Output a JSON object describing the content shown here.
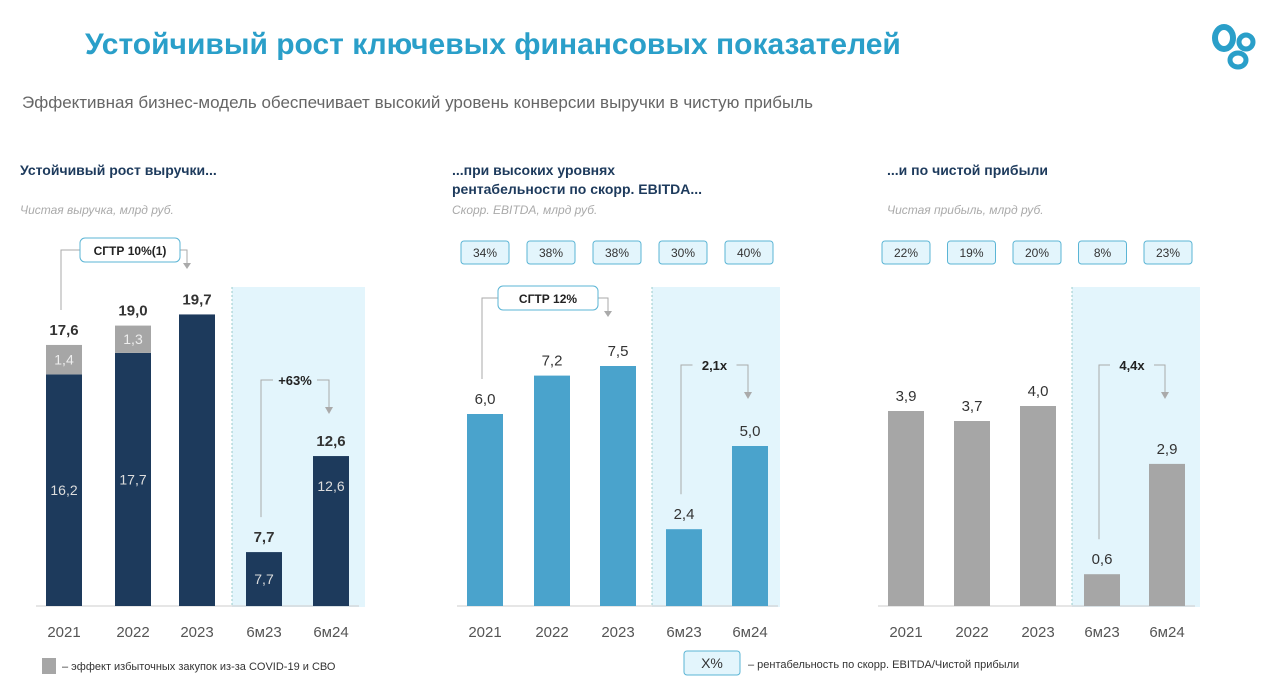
{
  "title": "Устойчивый рост ключевых финансовых показателей",
  "subtitle": "Эффективная бизнес-модель обеспечивает высокий уровень конверсии выручки в чистую прибыль",
  "colors": {
    "revenue": "#1d3a5c",
    "covid": "#a6a6a6",
    "ebitda": "#4aa3cc",
    "net": "#a6a6a6",
    "highlight": "#e3f5fc",
    "title": "#2a9fc9"
  },
  "legend": {
    "covid": "– эффект избыточных закупок из-за COVID-19 и СВО",
    "box": "X%",
    "margin": "– рентабельность по скорр. EBITDA/Чистой прибыли"
  },
  "chart_data": [
    {
      "type": "bar",
      "heading": "Устойчивый рост выручки...",
      "ylabel": "Чистая выручка, млрд руб.",
      "categories": [
        "2021",
        "2022",
        "2023",
        "6м23",
        "6м24"
      ],
      "series": [
        {
          "values": [
            16.2,
            17.7,
            19.7,
            7.7,
            12.6
          ]
        },
        {
          "values": [
            1.4,
            1.3,
            0,
            0,
            0
          ]
        }
      ],
      "totals": [
        "17,6",
        "19,0",
        "19,7",
        "7,7",
        "12,6"
      ],
      "inner_labels": [
        "16,2",
        "17,7",
        "",
        "7,7",
        "12,6"
      ],
      "top_labels": [
        "1,4",
        "1,3",
        "",
        "",
        ""
      ],
      "annotations": [
        "СГТР 10%(1)",
        "+63%"
      ],
      "margins": []
    },
    {
      "type": "bar",
      "heading": "...при высоких уровнях рентабельности по скорр. EBITDA...",
      "ylabel": "Скорр. EBITDA, млрд руб.",
      "categories": [
        "2021",
        "2022",
        "2023",
        "6м23",
        "6м24"
      ],
      "series": [
        {
          "values": [
            6.0,
            7.2,
            7.5,
            2.4,
            5.0
          ]
        }
      ],
      "totals": [
        "6,0",
        "7,2",
        "7,5",
        "2,4",
        "5,0"
      ],
      "annotations": [
        "СГТР 12%",
        "2,1x"
      ],
      "margins": [
        "34%",
        "38%",
        "38%",
        "30%",
        "40%"
      ]
    },
    {
      "type": "bar",
      "heading": "...и по чистой прибыли",
      "ylabel": "Чистая прибыль, млрд руб.",
      "categories": [
        "2021",
        "2022",
        "2023",
        "6м23",
        "6м24"
      ],
      "series": [
        {
          "values": [
            3.9,
            3.7,
            4.0,
            0.6,
            2.9
          ]
        }
      ],
      "totals": [
        "3,9",
        "3,7",
        "4,0",
        "0,6",
        "2,9"
      ],
      "annotations": [
        "",
        "4,4x"
      ],
      "margins": [
        "22%",
        "19%",
        "20%",
        "8%",
        "23%"
      ]
    }
  ]
}
